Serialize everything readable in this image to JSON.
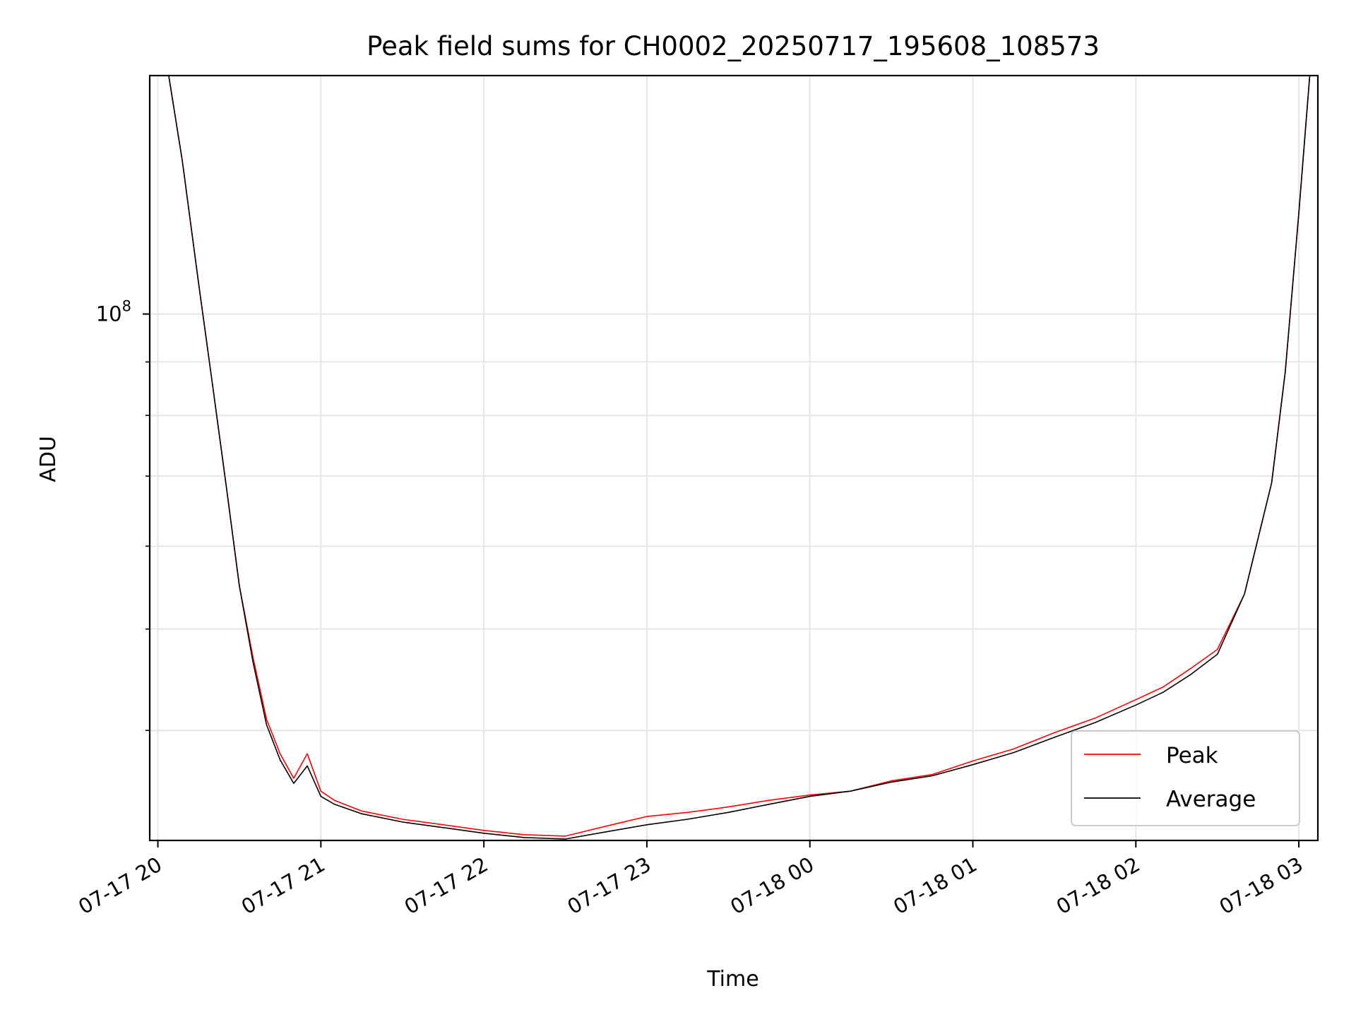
{
  "chart_data": {
    "type": "line",
    "title": "Peak field sums for CH0002_20250717_195608_108573",
    "xlabel": "Time",
    "ylabel": "ADU",
    "x_tick_labels": [
      "07-17 20",
      "07-17 21",
      "07-17 22",
      "07-17 23",
      "07-18 00",
      "07-18 01",
      "07-18 02",
      "07-18 03"
    ],
    "y_tick_labels": [
      {
        "base": "10",
        "exp": "8",
        "value": 100000000
      }
    ],
    "yscale": "log",
    "xlim": [
      "2025-07-17 19:57",
      "2025-07-18 03:07"
    ],
    "ylim": [
      31400000,
      169000000
    ],
    "grid": true,
    "legend": {
      "position": "lower right",
      "entries": [
        "Peak",
        "Average"
      ]
    },
    "series": [
      {
        "name": "Peak",
        "color": "#ff0000",
        "x": [
          "2025-07-17 20:04",
          "2025-07-17 20:09",
          "2025-07-17 20:15",
          "2025-07-17 20:20",
          "2025-07-17 20:25",
          "2025-07-17 20:30",
          "2025-07-17 20:35",
          "2025-07-17 20:40",
          "2025-07-17 20:45",
          "2025-07-17 20:50",
          "2025-07-17 20:55",
          "2025-07-17 21:00",
          "2025-07-17 21:05",
          "2025-07-17 21:15",
          "2025-07-17 21:30",
          "2025-07-17 21:45",
          "2025-07-17 22:00",
          "2025-07-17 22:15",
          "2025-07-17 22:30",
          "2025-07-17 22:45",
          "2025-07-17 23:00",
          "2025-07-17 23:15",
          "2025-07-17 23:30",
          "2025-07-17 23:45",
          "2025-07-18 00:00",
          "2025-07-18 00:15",
          "2025-07-18 00:30",
          "2025-07-18 00:45",
          "2025-07-18 01:00",
          "2025-07-18 01:15",
          "2025-07-18 01:30",
          "2025-07-18 01:45",
          "2025-07-18 02:00",
          "2025-07-18 02:10",
          "2025-07-18 02:20",
          "2025-07-18 02:30",
          "2025-07-18 02:40",
          "2025-07-18 02:50",
          "2025-07-18 02:55",
          "2025-07-18 03:00",
          "2025-07-18 03:04"
        ],
        "values": [
          169000000,
          140000000,
          107000000,
          86000000,
          69000000,
          55000000,
          47000000,
          41000000,
          38000000,
          36000000,
          38000000,
          35000000,
          34300000,
          33500000,
          32900000,
          32500000,
          32100000,
          31800000,
          31700000,
          32400000,
          33100000,
          33400000,
          33800000,
          34300000,
          34700000,
          35000000,
          35800000,
          36300000,
          37400000,
          38400000,
          39800000,
          41100000,
          42800000,
          44000000,
          45800000,
          47800000,
          54000000,
          69000000,
          88000000,
          125000000,
          169000000
        ]
      },
      {
        "name": "Average",
        "color": "#000000",
        "x": [
          "2025-07-17 20:04",
          "2025-07-17 20:09",
          "2025-07-17 20:15",
          "2025-07-17 20:20",
          "2025-07-17 20:25",
          "2025-07-17 20:30",
          "2025-07-17 20:35",
          "2025-07-17 20:40",
          "2025-07-17 20:45",
          "2025-07-17 20:50",
          "2025-07-17 20:55",
          "2025-07-17 21:00",
          "2025-07-17 21:05",
          "2025-07-17 21:15",
          "2025-07-17 21:30",
          "2025-07-17 21:45",
          "2025-07-17 22:00",
          "2025-07-17 22:15",
          "2025-07-17 22:30",
          "2025-07-17 22:45",
          "2025-07-17 23:00",
          "2025-07-17 23:15",
          "2025-07-17 23:30",
          "2025-07-17 23:45",
          "2025-07-18 00:00",
          "2025-07-18 00:15",
          "2025-07-18 00:30",
          "2025-07-18 00:45",
          "2025-07-18 01:00",
          "2025-07-18 01:15",
          "2025-07-18 01:30",
          "2025-07-18 01:45",
          "2025-07-18 02:00",
          "2025-07-18 02:10",
          "2025-07-18 02:20",
          "2025-07-18 02:30",
          "2025-07-18 02:40",
          "2025-07-18 02:50",
          "2025-07-18 02:55",
          "2025-07-18 03:00",
          "2025-07-18 03:04"
        ],
        "values": [
          169000000,
          140000000,
          107000000,
          86000000,
          69000000,
          55000000,
          46500000,
          40500000,
          37500000,
          35600000,
          37000000,
          34600000,
          34000000,
          33300000,
          32700000,
          32300000,
          31900000,
          31600000,
          31500000,
          32000000,
          32500000,
          32900000,
          33400000,
          34000000,
          34600000,
          35000000,
          35700000,
          36200000,
          37100000,
          38100000,
          39400000,
          40700000,
          42300000,
          43500000,
          45200000,
          47300000,
          54000000,
          69000000,
          88000000,
          125000000,
          169000000
        ]
      }
    ]
  }
}
